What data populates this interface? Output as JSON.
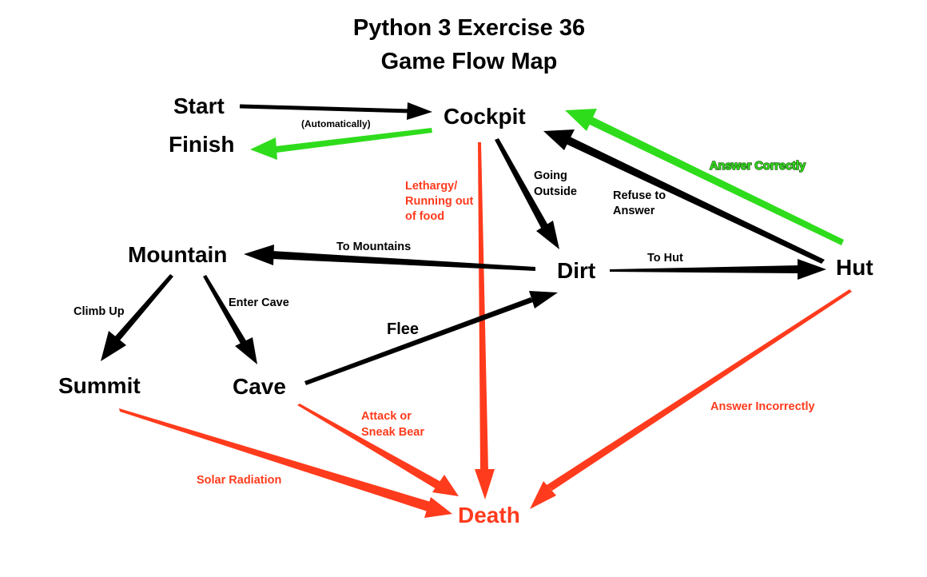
{
  "title": {
    "line1": "Python 3 Exercise 36",
    "line2": "Game Flow Map"
  },
  "colors": {
    "black": "#000000",
    "green": "#2fdc1c",
    "red": "#ff3b1d"
  },
  "nodes": {
    "start": "Start",
    "finish": "Finish",
    "cockpit": "Cockpit",
    "mountain": "Mountain",
    "dirt": "Dirt",
    "hut": "Hut",
    "summit": "Summit",
    "cave": "Cave",
    "death": "Death"
  },
  "edges": {
    "automatically": "(Automatically)",
    "going_outside_1": "Going",
    "going_outside_2": "Outside",
    "lethargy_1": "Lethargy/",
    "lethargy_2": "Running out",
    "lethargy_3": "of food",
    "refuse_1": "Refuse to",
    "refuse_2": "Answer",
    "answer_correctly": "Answer Correctly",
    "to_mountains": "To Mountains",
    "to_hut": "To Hut",
    "climb_up": "Climb Up",
    "enter_cave": "Enter Cave",
    "flee": "Flee",
    "attack_1": "Attack or",
    "attack_2": "Sneak Bear",
    "answer_incorrectly": "Answer Incorrectly",
    "solar_radiation": "Solar Radiation"
  }
}
